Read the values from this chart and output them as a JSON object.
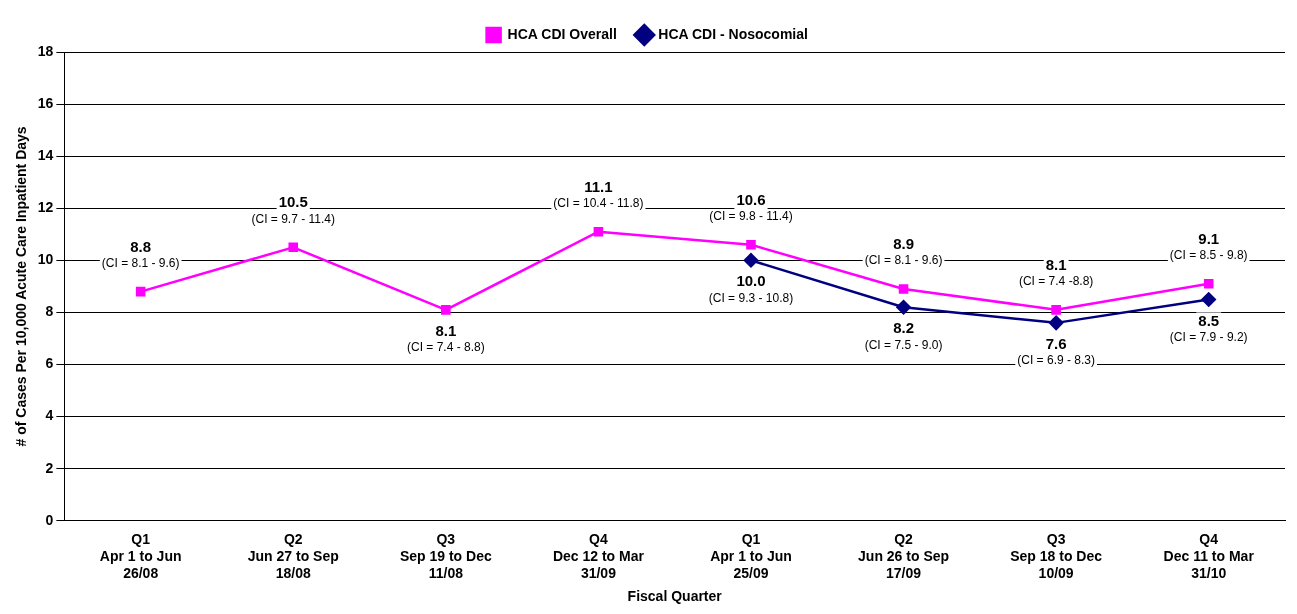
{
  "chart_data": {
    "type": "line",
    "xlabel": "Fiscal Quarter",
    "ylabel": "# of Cases Per 10,000 Acute Care Inpatient Days",
    "categories": [
      "Q1\nApr 1 to Jun\n26/08",
      "Q2\nJun 27 to Sep\n18/08",
      "Q3\nSep 19 to Dec\n11/08",
      "Q4\nDec 12 to Mar\n31/09",
      "Q1\nApr 1 to Jun\n25/09",
      "Q2\nJun 26 to Sep\n17/09",
      "Q3\nSep 18 to Dec\n10/09",
      "Q4\nDec 11 to Mar\n31/10"
    ],
    "series": [
      {
        "name": "HCA CDI Overall",
        "color": "#ff00ff",
        "marker": "square",
        "values": [
          8.8,
          10.5,
          8.1,
          11.1,
          10.6,
          8.9,
          8.1,
          9.1
        ],
        "value_labels": [
          "8.8",
          "10.5",
          "8.1",
          "11.1",
          "10.6",
          "8.9",
          "8.1",
          "9.1"
        ]
      },
      {
        "name": "HCA CDI - Nosocomial",
        "color": "#000080",
        "marker": "diamond",
        "values": [
          null,
          null,
          null,
          null,
          10.0,
          8.2,
          7.6,
          8.5
        ],
        "value_labels": [
          null,
          null,
          null,
          null,
          "10.0",
          "8.2",
          "7.6",
          "8.5"
        ]
      }
    ],
    "annotations": [
      {
        "text": "(CI = 8.1 - 9.6)",
        "x": "Q1\nApr 1 to Jun\n26/08",
        "y": 8.8
      },
      {
        "text": "(CI = 9.7 - 11.4)",
        "x": "Q2\nJun 27 to Sep\n18/08",
        "y": 10.5
      },
      {
        "text": "(CI = 7.4 - 8.8)",
        "x": "Q3\nSep 19 to Dec\n11/08",
        "y": 8.1
      },
      {
        "text": "(CI = 10.4 - 11.8)",
        "x": "Q4\nDec 12 to Mar\n31/09",
        "y": 11.1
      },
      {
        "text": "(CI = 9.8 - 11.4)",
        "x": "Q1\nApr 1 to Jun\n25/09",
        "y": 10.6
      },
      {
        "text": "(CI = 8.1 - 9.6)",
        "x": "Q2\nJun 26 to Sep\n17/09",
        "y": 8.9
      },
      {
        "text": "(CI = 7.4 -8.8)",
        "x": "Q3\nSep 18 to Dec\n10/09",
        "y": 8.1
      },
      {
        "text": "(CI = 8.5 - 9.8)",
        "x": "Q4\nDec 11 to Mar\n31/10",
        "y": 9.1
      },
      {
        "text": "(CI = 9.3 - 10.8)",
        "x": "Q1\nApr 1 to Jun\n25/09",
        "y": 10.0
      },
      {
        "text": "(CI = 7.5 - 9.0)",
        "x": "Q2\nJun 26 to Sep\n17/09",
        "y": 8.2
      },
      {
        "text": "(CI = 6.9 - 8.3)",
        "x": "Q3\nSep 18 to Dec\n10/09",
        "y": 7.6
      },
      {
        "text": "(CI = 7.9 - 9.2)",
        "x": "Q4\nDec 11 to Mar\n31/10",
        "y": 8.5
      }
    ],
    "ylim": [
      0,
      18
    ],
    "yticks": [
      0,
      2,
      4,
      6,
      8,
      10,
      12,
      14,
      16,
      18
    ],
    "grid": "y",
    "legend": "top"
  }
}
